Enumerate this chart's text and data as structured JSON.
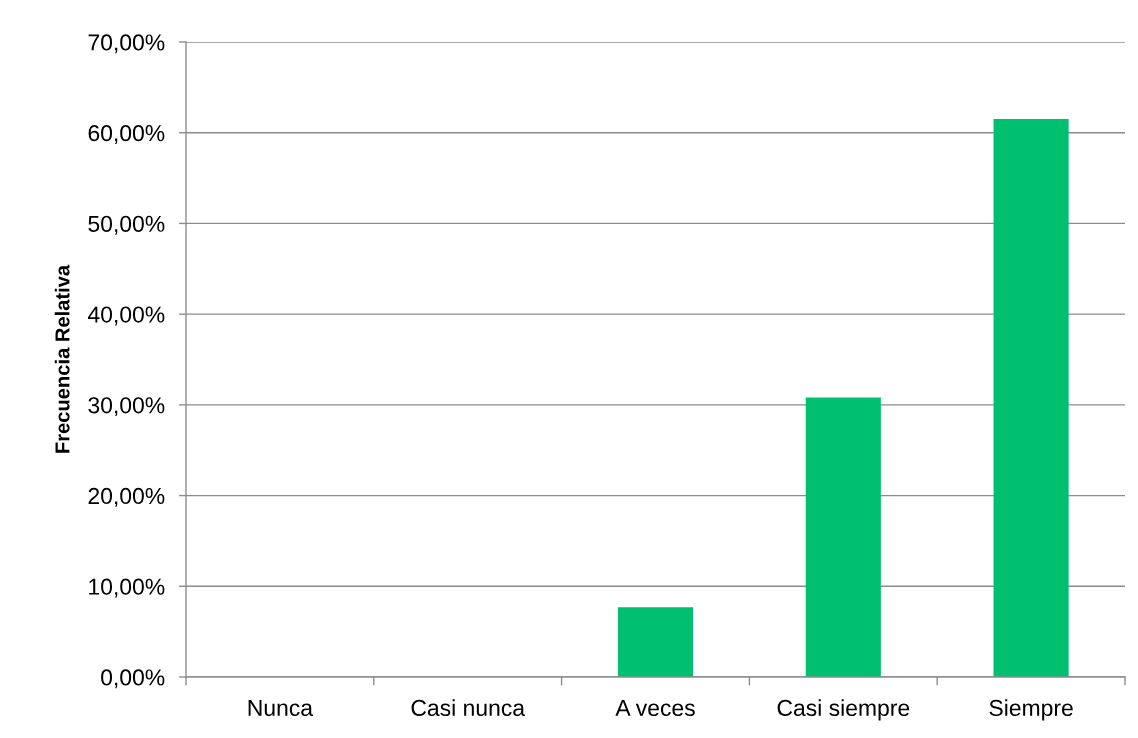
{
  "chart_data": {
    "type": "bar",
    "ylabel": "Frecuencia Relativa",
    "categories": [
      "Nunca",
      "Casi nunca",
      "A veces",
      "Casi siempre",
      "Siempre"
    ],
    "values": [
      0,
      0,
      7.7,
      30.8,
      61.5
    ],
    "color": "#00bf6f",
    "ylim": [
      0,
      70
    ],
    "yticks": [
      {
        "value": 0,
        "label": "0,00%"
      },
      {
        "value": 10,
        "label": "10,00%"
      },
      {
        "value": 20,
        "label": "20,00%"
      },
      {
        "value": 30,
        "label": "30,00%"
      },
      {
        "value": 40,
        "label": "40,00%"
      },
      {
        "value": 50,
        "label": "50,00%"
      },
      {
        "value": 60,
        "label": "60,00%"
      },
      {
        "value": 70,
        "label": "70,00%"
      }
    ],
    "grid": "y"
  }
}
